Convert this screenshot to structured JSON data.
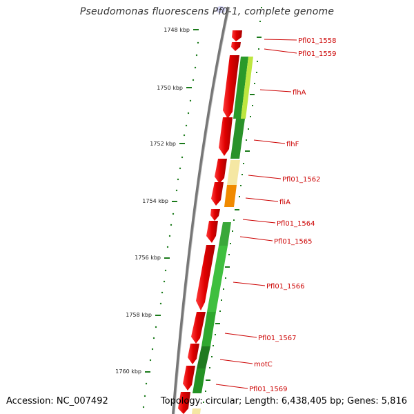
{
  "title": "Pseudomonas fluorescens Pf0-1, complete genome",
  "footer": {
    "accession": "Accession: NC_007492",
    "summary": "Topology: circular; Length: 6,438,405 bp; Genes: 5,816"
  },
  "colors": {
    "backbone": "#777777",
    "tick": "#1a7a1a",
    "gene_red": "#e00000",
    "label": "#cc0000",
    "green_dark": "#1f8a1f",
    "green_mid": "#3ab83a",
    "green_light": "#b9e640",
    "yellow_pale": "#f5e8a0",
    "orange": "#f08a00"
  },
  "ticks": [
    {
      "label": "1748 kbp"
    },
    {
      "label": "1750 kbp"
    },
    {
      "label": "1752 kbp"
    },
    {
      "label": "1754 kbp"
    },
    {
      "label": "1756 kbp"
    },
    {
      "label": "1758 kbp"
    },
    {
      "label": "1760 kbp"
    }
  ],
  "genes": [
    {
      "label": "Pfl01_1558"
    },
    {
      "label": "Pfl01_1559"
    },
    {
      "label": "flhA"
    },
    {
      "label": "flhF"
    },
    {
      "label": "Pfl01_1562"
    },
    {
      "label": "fliA"
    },
    {
      "label": "Pfl01_1564"
    },
    {
      "label": "Pfl01_1565"
    },
    {
      "label": "Pfl01_1566"
    },
    {
      "label": "Pfl01_1567"
    },
    {
      "label": "motC"
    },
    {
      "label": "Pfl01_1569"
    }
  ]
}
